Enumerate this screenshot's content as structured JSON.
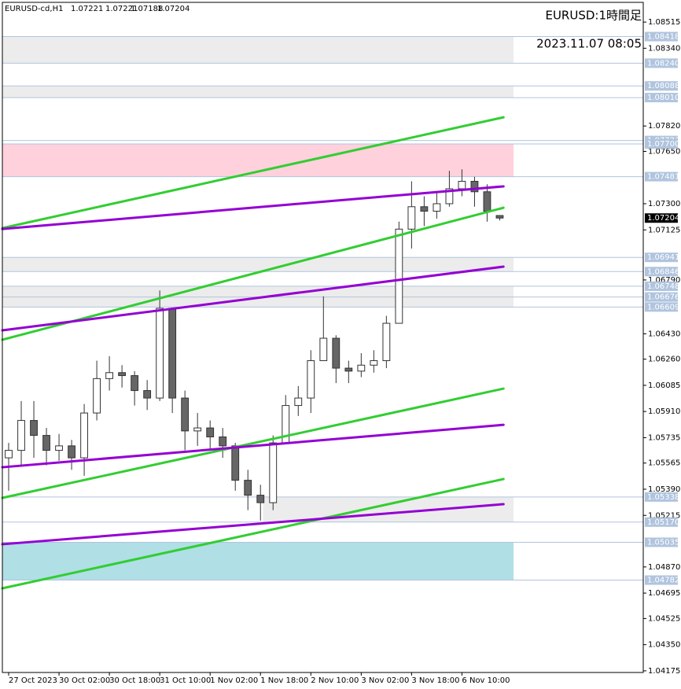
{
  "chart_data": {
    "type": "candlestick",
    "symbol": "EURUSD-cd,H1",
    "title": "EURUSD:1時間足",
    "subtitle": "2023.11.07 08:05",
    "candles": {
      "open": [
        1.056,
        1.0565,
        1.0585,
        1.0575,
        1.0565,
        1.0568,
        1.056,
        1.059,
        1.0613,
        1.0617,
        1.0615,
        1.0605,
        1.06,
        1.066,
        1.06,
        1.0578,
        1.058,
        1.0574,
        1.0568,
        1.0545,
        1.0535,
        1.053,
        1.057,
        1.0595,
        1.06,
        1.0625,
        1.064,
        1.062,
        1.0618,
        1.0622,
        1.0625,
        1.065,
        1.0713,
        1.0728,
        1.0725,
        1.073,
        1.074,
        1.0745,
        1.0738,
        1.07221
      ],
      "high": [
        1.057,
        1.0598,
        1.0598,
        1.058,
        1.0576,
        1.0572,
        1.0596,
        1.0625,
        1.0628,
        1.0622,
        1.0618,
        1.0612,
        1.0672,
        1.066,
        1.0605,
        1.059,
        1.0585,
        1.058,
        1.057,
        1.0552,
        1.0542,
        1.0575,
        1.0602,
        1.0608,
        1.0632,
        1.0668,
        1.0642,
        1.0625,
        1.063,
        1.0632,
        1.0655,
        1.0718,
        1.0745,
        1.0735,
        1.0738,
        1.0752,
        1.0753,
        1.0748,
        1.0743,
        1.07221
      ],
      "low": [
        1.0538,
        1.0555,
        1.056,
        1.0555,
        1.0558,
        1.0552,
        1.0548,
        1.0585,
        1.0605,
        1.0607,
        1.0595,
        1.0592,
        1.0598,
        1.059,
        1.0565,
        1.0568,
        1.0565,
        1.056,
        1.0538,
        1.0525,
        1.0518,
        1.0525,
        1.057,
        1.0588,
        1.059,
        1.0625,
        1.061,
        1.061,
        1.0614,
        1.0617,
        1.062,
        1.065,
        1.07,
        1.0715,
        1.072,
        1.0728,
        1.0735,
        1.0728,
        1.0718,
        1.07188
      ],
      "close": [
        1.0565,
        1.0585,
        1.0575,
        1.0565,
        1.0568,
        1.056,
        1.059,
        1.0613,
        1.0617,
        1.0615,
        1.0605,
        1.06,
        1.066,
        1.06,
        1.0578,
        1.058,
        1.0574,
        1.0568,
        1.0545,
        1.0535,
        1.053,
        1.057,
        1.0595,
        1.06,
        1.0625,
        1.064,
        1.062,
        1.0618,
        1.0622,
        1.0625,
        1.065,
        1.0713,
        1.0728,
        1.0725,
        1.073,
        1.074,
        1.0745,
        1.0738,
        1.0725,
        1.07204
      ]
    },
    "xlim": [
      -0.5,
      50.4
    ],
    "xticks": [
      {
        "value": 0,
        "label": "27 Oct 2023"
      },
      {
        "value": 4,
        "label": "30 Oct 02:00"
      },
      {
        "value": 8,
        "label": "30 Oct 18:00"
      },
      {
        "value": 12,
        "label": "31 Oct 10:00"
      },
      {
        "value": 16,
        "label": "1 Nov 02:00"
      },
      {
        "value": 20,
        "label": "1 Nov 18:00"
      },
      {
        "value": 24,
        "label": "2 Nov 10:00"
      },
      {
        "value": 28,
        "label": "3 Nov 02:00"
      },
      {
        "value": 32,
        "label": "3 Nov 18:00"
      },
      {
        "value": 36,
        "label": "6 Nov 10:00"
      }
    ],
    "ylim": [
      1.04164,
      1.08647
    ],
    "yticks": [
      1.08515,
      {
        "value": 1.0834,
        "label": "1.08340"
      },
      {
        "value": 1.0782,
        "label": "1.07820"
      },
      {
        "value": 1.0765,
        "label": "1.07650"
      },
      {
        "value": 1.073,
        "label": "1.07300"
      },
      1.07125,
      {
        "value": 1.0679,
        "label": "1.06790"
      },
      {
        "value": 1.0643,
        "label": "1.06430"
      },
      {
        "value": 1.0626,
        "label": "1.06260"
      },
      1.06085,
      {
        "value": 1.0591,
        "label": "1.05910"
      },
      1.05735,
      1.05565,
      {
        "value": 1.0539,
        "label": "1.05390"
      },
      1.05215,
      {
        "value": 1.0487,
        "label": "1.04870"
      },
      1.04695,
      1.04525,
      {
        "value": 1.0435,
        "label": "1.04350"
      },
      1.04175
    ],
    "level_lines": [
      1.08418,
      {
        "value": 1.0824,
        "label": "1.08240"
      },
      1.08088,
      {
        "value": 1.0801,
        "label": "1.08010"
      },
      1.07723,
      {
        "value": 1.077,
        "label": "1.07700"
      },
      1.07481,
      1.06941,
      1.06846,
      1.06748,
      1.06676,
      1.06609,
      1.05338,
      {
        "value": 1.0517,
        "label": "1.05170"
      },
      1.05035,
      1.04782
    ],
    "zones": [
      {
        "color": "#ececec",
        "x": [
          -0.5,
          40.1
        ],
        "values": [
          1.08418,
          1.0824
        ]
      },
      {
        "color": "#ececec",
        "x": [
          -0.5,
          40.1
        ],
        "values": [
          1.08088,
          1.0801
        ]
      },
      {
        "color": "#ffd1dc",
        "x": [
          -0.5,
          40.1
        ],
        "values": [
          1.077,
          1.07481
        ]
      },
      {
        "color": "#ececec",
        "x": [
          -0.5,
          40.1
        ],
        "values": [
          1.06941,
          1.06846
        ]
      },
      {
        "color": "#ececec",
        "x": [
          -0.5,
          40.1
        ],
        "values": [
          1.06748,
          1.06609
        ]
      },
      {
        "color": "#ececec",
        "x": [
          20.2,
          40.1
        ],
        "values": [
          1.05338,
          1.0517
        ]
      },
      {
        "color": "#b0dfe5",
        "x": [
          -0.5,
          40.1
        ],
        "values": [
          1.05035,
          1.04782
        ]
      }
    ],
    "trend_lines": [
      {
        "color": "#32cd32",
        "x": [
          -0.5,
          39.3
        ],
        "values": [
          1.07137,
          1.07878
        ]
      },
      {
        "color": "#32cd32",
        "x": [
          -0.5,
          39.3
        ],
        "values": [
          1.0639,
          1.07273
        ]
      },
      {
        "color": "#32cd32",
        "x": [
          -0.5,
          39.3
        ],
        "values": [
          1.05332,
          1.06063
        ]
      },
      {
        "color": "#32cd32",
        "x": [
          -0.5,
          39.3
        ],
        "values": [
          1.04727,
          1.05458
        ]
      },
      {
        "color": "#9400d3",
        "x": [
          -0.5,
          39.3
        ],
        "values": [
          1.07131,
          1.07416
        ]
      },
      {
        "color": "#9400d3",
        "x": [
          -0.5,
          39.3
        ],
        "values": [
          1.06453,
          1.06879
        ]
      },
      {
        "color": "#9400d3",
        "x": [
          -0.5,
          39.3
        ],
        "values": [
          1.05537,
          1.05821
        ]
      },
      {
        "color": "#9400d3",
        "x": [
          -0.5,
          39.3
        ],
        "values": [
          1.05022,
          1.0529
        ]
      }
    ]
  }
}
